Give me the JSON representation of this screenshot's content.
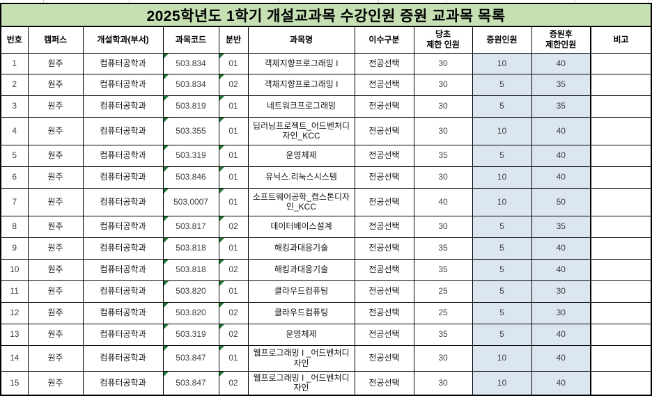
{
  "title": "2025학년도 1학기 개설교과목 수강인원 증원 교과목 목록",
  "theme": {
    "title_bg": "#c6e0b4",
    "highlight_bg": "#dce6f1",
    "border_color": "#000000",
    "error_indicator_color": "#217a36"
  },
  "columns": [
    {
      "key": "no",
      "label": "번호",
      "highlighted": false
    },
    {
      "key": "campus",
      "label": "캠퍼스",
      "highlighted": false
    },
    {
      "key": "dept",
      "label": "개설학과(부서)",
      "highlighted": false
    },
    {
      "key": "code",
      "label": "과목코드",
      "highlighted": false
    },
    {
      "key": "section",
      "label": "분반",
      "highlighted": false
    },
    {
      "key": "course",
      "label": "과목명",
      "highlighted": false
    },
    {
      "key": "type",
      "label": "이수구분",
      "highlighted": false
    },
    {
      "key": "before",
      "label": "당초\n제한 인원",
      "highlighted": false
    },
    {
      "key": "increase",
      "label": "증원인원",
      "highlighted": true
    },
    {
      "key": "after",
      "label": "증원후\n제한인원",
      "highlighted": true
    },
    {
      "key": "note",
      "label": "비고",
      "highlighted": false
    }
  ],
  "rows": [
    {
      "no": "1",
      "campus": "원주",
      "dept": "컴퓨터공학과",
      "code": "503.834",
      "section": "01",
      "course": "객체지향프로그래밍 I",
      "type": "전공선택",
      "before": "30",
      "increase": "10",
      "after": "40",
      "note": ""
    },
    {
      "no": "2",
      "campus": "원주",
      "dept": "컴퓨터공학과",
      "code": "503.834",
      "section": "02",
      "course": "객체지향프로그래밍 I",
      "type": "전공선택",
      "before": "30",
      "increase": "5",
      "after": "35",
      "note": ""
    },
    {
      "no": "3",
      "campus": "원주",
      "dept": "컴퓨터공학과",
      "code": "503.819",
      "section": "01",
      "course": "네트워크프로그래밍",
      "type": "전공선택",
      "before": "30",
      "increase": "5",
      "after": "35",
      "note": ""
    },
    {
      "no": "4",
      "campus": "원주",
      "dept": "컴퓨터공학과",
      "code": "503.355",
      "section": "01",
      "course": "딥러닝프로젝트_어드벤처디자인_KCC",
      "type": "전공선택",
      "before": "30",
      "increase": "10",
      "after": "40",
      "note": ""
    },
    {
      "no": "5",
      "campus": "원주",
      "dept": "컴퓨터공학과",
      "code": "503.319",
      "section": "01",
      "course": "운영체제",
      "type": "전공선택",
      "before": "35",
      "increase": "5",
      "after": "40",
      "note": ""
    },
    {
      "no": "6",
      "campus": "원주",
      "dept": "컴퓨터공학과",
      "code": "503.846",
      "section": "01",
      "course": "유닉스.리눅스시스템",
      "type": "전공선택",
      "before": "30",
      "increase": "10",
      "after": "40",
      "note": ""
    },
    {
      "no": "7",
      "campus": "원주",
      "dept": "컴퓨터공학과",
      "code": "503.0007",
      "section": "01",
      "course": "소프트웨어공학_캡스톤디자인_KCC",
      "type": "전공선택",
      "before": "40",
      "increase": "10",
      "after": "50",
      "note": ""
    },
    {
      "no": "8",
      "campus": "원주",
      "dept": "컴퓨터공학과",
      "code": "503.817",
      "section": "02",
      "course": "데이터베이스설계",
      "type": "전공선택",
      "before": "30",
      "increase": "5",
      "after": "35",
      "note": ""
    },
    {
      "no": "9",
      "campus": "원주",
      "dept": "컴퓨터공학과",
      "code": "503.818",
      "section": "01",
      "course": "해킹과대응기술",
      "type": "전공선택",
      "before": "35",
      "increase": "5",
      "after": "40",
      "note": ""
    },
    {
      "no": "10",
      "campus": "원주",
      "dept": "컴퓨터공학과",
      "code": "503.818",
      "section": "02",
      "course": "해킹과대응기술",
      "type": "전공선택",
      "before": "35",
      "increase": "5",
      "after": "40",
      "note": ""
    },
    {
      "no": "11",
      "campus": "원주",
      "dept": "컴퓨터공학과",
      "code": "503.820",
      "section": "01",
      "course": "클라우드컴퓨팅",
      "type": "전공선택",
      "before": "25",
      "increase": "5",
      "after": "30",
      "note": ""
    },
    {
      "no": "12",
      "campus": "원주",
      "dept": "컴퓨터공학과",
      "code": "503.820",
      "section": "02",
      "course": "클라우드컴퓨팅",
      "type": "전공선택",
      "before": "25",
      "increase": "5",
      "after": "30",
      "note": ""
    },
    {
      "no": "13",
      "campus": "원주",
      "dept": "컴퓨터공학과",
      "code": "503.319",
      "section": "02",
      "course": "운영체제",
      "type": "전공선택",
      "before": "35",
      "increase": "5",
      "after": "40",
      "note": ""
    },
    {
      "no": "14",
      "campus": "원주",
      "dept": "컴퓨터공학과",
      "code": "503.847",
      "section": "01",
      "course": "웹프로그래밍 I _어드벤처디자인",
      "type": "전공선택",
      "before": "30",
      "increase": "10",
      "after": "40",
      "note": ""
    },
    {
      "no": "15",
      "campus": "원주",
      "dept": "컴퓨터공학과",
      "code": "503.847",
      "section": "02",
      "course": "웹프로그래밍 I _어드벤처디자인",
      "type": "전공선택",
      "before": "30",
      "increase": "10",
      "after": "40",
      "note": ""
    }
  ]
}
